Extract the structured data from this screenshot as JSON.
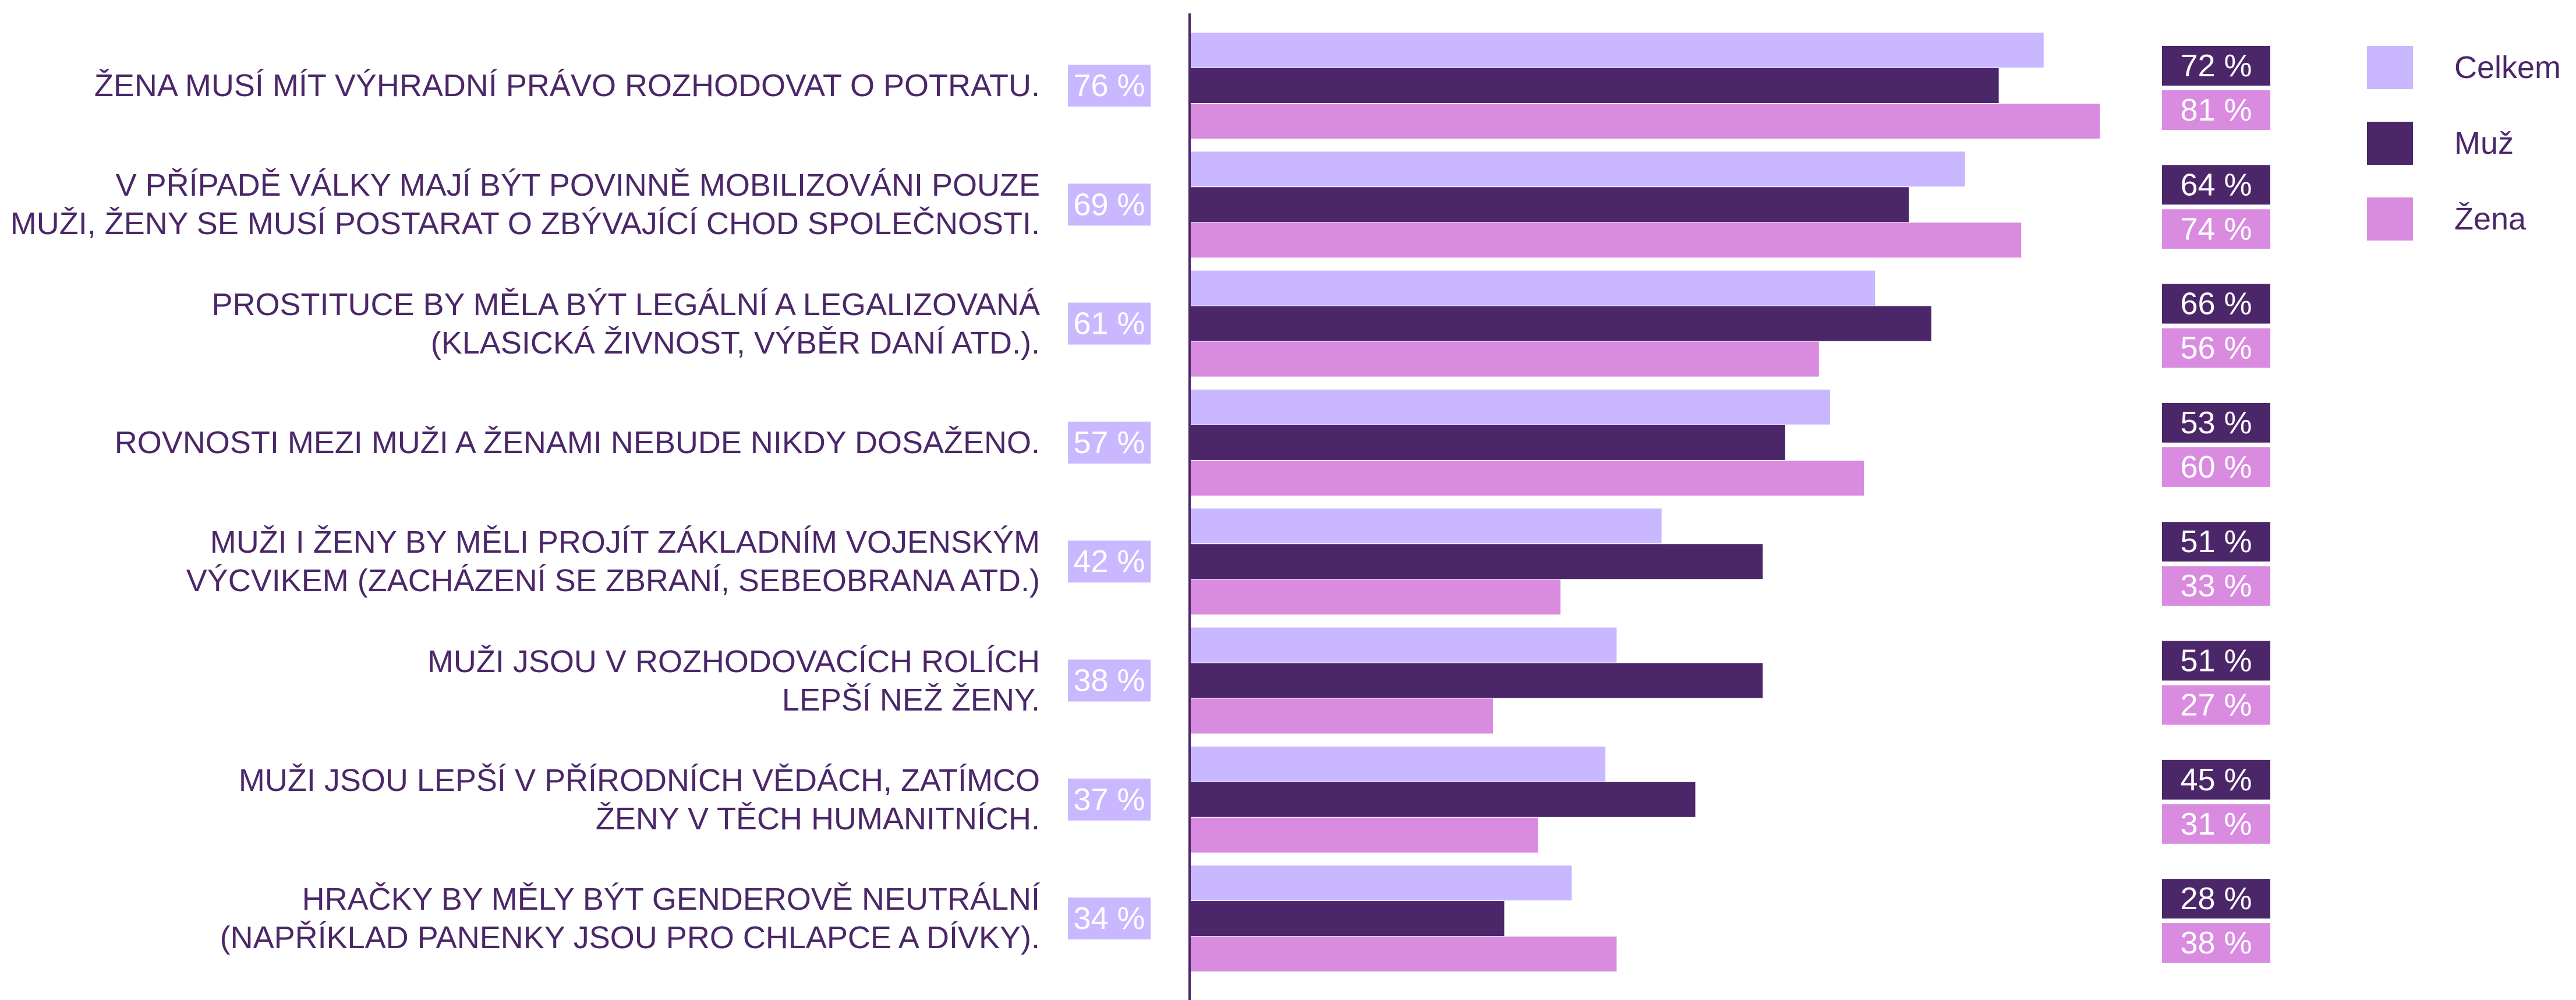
{
  "chart_data": {
    "type": "bar",
    "orientation": "horizontal",
    "categories": [
      "ŽENA MUSÍ MÍT VÝHRADNÍ PRÁVO ROZHODOVAT O POTRATU.",
      "V PŘÍPADĚ VÁLKY MAJÍ BÝT POVINNĚ MOBILIZOVÁNI POUZE\nMUŽI, ŽENY SE MUSÍ POSTARAT O ZBÝVAJÍCÍ CHOD SPOLEČNOSTI.",
      "PROSTITUCE BY MĚLA BÝT LEGÁLNÍ A LEGALIZOVANÁ\n(KLASICKÁ ŽIVNOST, VÝBĚR DANÍ ATD.).",
      "ROVNOSTI MEZI MUŽI A ŽENAMI NEBUDE NIKDY DOSAŽENO.",
      "MUŽI I ŽENY BY MĚLI PROJÍT ZÁKLADNÍM VOJENSKÝM\nVÝCVIKEM (ZACHÁZENÍ SE ZBRANÍ, SEBEOBRANA ATD.)",
      "MUŽI JSOU V ROZHODOVACÍCH ROLÍCH\nLEPŠÍ NEŽ ŽENY.",
      "MUŽI JSOU LEPŠÍ V PŘÍRODNÍCH VĚDÁCH, ZATÍMCO\nŽENY V TĚCH HUMANITNÍCH.",
      "HRAČKY BY MĚLY BÝT GENDEROVĚ NEUTRÁLNÍ\n(NAPŘÍKLAD PANENKY JSOU PRO CHLAPCE A DÍVKY)."
    ],
    "series": [
      {
        "name": "Celkem",
        "color": "#c9b8ff",
        "values": [
          76,
          69,
          61,
          57,
          42,
          38,
          37,
          34
        ],
        "value_labels": [
          "76 %",
          "69 %",
          "61 %",
          "57 %",
          "42 %",
          "38 %",
          "37 %",
          "34 %"
        ]
      },
      {
        "name": "Muž",
        "color": "#4b2769",
        "values": [
          72,
          64,
          66,
          53,
          51,
          51,
          45,
          28
        ],
        "value_labels": [
          "72 %",
          "64 %",
          "66 %",
          "53 %",
          "51 %",
          "51 %",
          "45 %",
          "28 %"
        ]
      },
      {
        "name": "Žena",
        "color": "#d98be0",
        "values": [
          81,
          74,
          56,
          60,
          33,
          27,
          31,
          38
        ],
        "value_labels": [
          "81 %",
          "74 %",
          "56 %",
          "60 %",
          "33 %",
          "27 %",
          "31 %",
          "38 %"
        ]
      }
    ],
    "xlim": [
      0,
      100
    ],
    "legend": "right"
  }
}
